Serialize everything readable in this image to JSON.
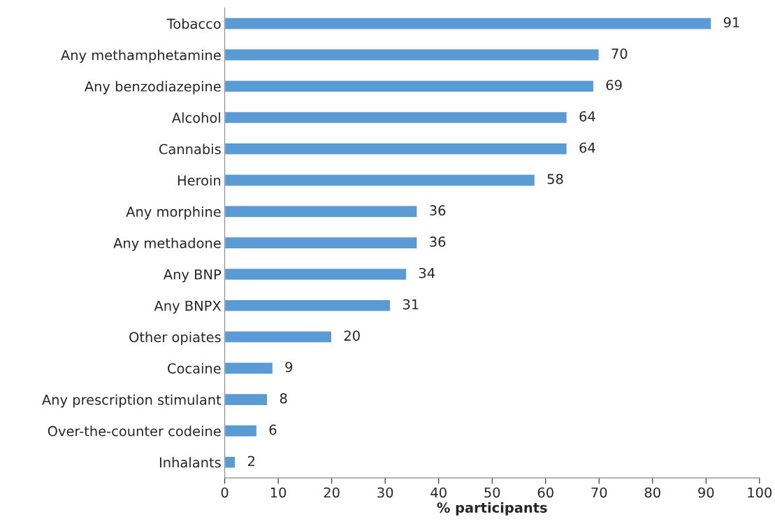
{
  "chart_data": {
    "type": "bar",
    "orientation": "horizontal",
    "xlabel": "% participants",
    "categories": [
      "Tobacco",
      "Any methamphetamine",
      "Any benzodiazepine",
      "Alcohol",
      "Cannabis",
      "Heroin",
      "Any morphine",
      "Any methadone",
      "Any BNP",
      "Any BNPX",
      "Other opiates",
      "Cocaine",
      "Any prescription stimulant",
      "Over-the-counter codeine",
      "Inhalants"
    ],
    "values": [
      91,
      70,
      69,
      64,
      64,
      58,
      36,
      36,
      34,
      31,
      20,
      9,
      8,
      6,
      2
    ],
    "color": "#5b9bd5",
    "xlim": [
      0,
      100
    ],
    "xticks": [
      0,
      10,
      20,
      30,
      40,
      50,
      60,
      70,
      80,
      90,
      100
    ],
    "data_labels": true,
    "grid": false,
    "legend": false
  }
}
